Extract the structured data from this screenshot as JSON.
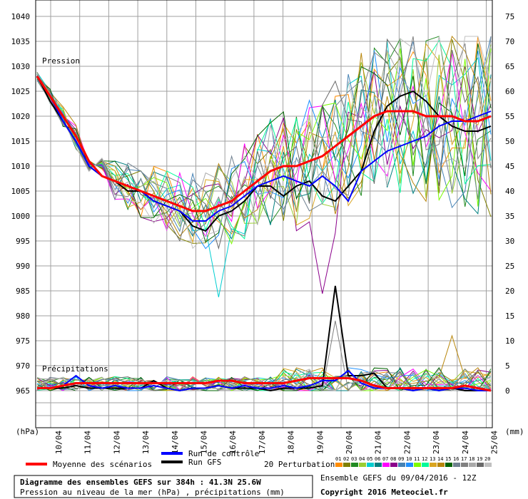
{
  "chart_data": {
    "type": "line",
    "left_axis": {
      "unit_label": "(hPa)",
      "ticks": [
        "1040",
        "1035",
        "1030",
        "1025",
        "1020",
        "1015",
        "1010",
        "1005",
        "1000",
        "995",
        "990",
        "985",
        "980",
        "975",
        "970",
        "965"
      ],
      "ylim": [
        960,
        1040
      ]
    },
    "right_axis": {
      "unit_label": "(mm)",
      "ticks": [
        "75",
        "70",
        "65",
        "60",
        "55",
        "50",
        "45",
        "40",
        "35",
        "30",
        "25",
        "20",
        "15",
        "10",
        "5",
        "0"
      ],
      "ylim": [
        -5,
        75
      ]
    },
    "x_ticks": [
      "10/04",
      "11/04",
      "12/04",
      "13/04",
      "14/04",
      "15/04",
      "16/04",
      "17/04",
      "18/04",
      "19/04",
      "20/04",
      "21/04",
      "22/04",
      "23/04",
      "24/04",
      "25/04"
    ],
    "section_labels": {
      "pressure": "Pression",
      "precip": "Précipitations"
    },
    "grid": true,
    "series": [
      {
        "name": "Moyenne des scénarios",
        "color": "#ff0000",
        "role": "mean",
        "pressure": [
          1028,
          1024,
          1020,
          1016,
          1011,
          1008,
          1007,
          1006,
          1005,
          1004,
          1003,
          1002,
          1001,
          1001,
          1002,
          1003,
          1005,
          1007,
          1009,
          1010,
          1010,
          1011,
          1012,
          1014,
          1016,
          1018,
          1020,
          1021,
          1021,
          1021,
          1020,
          1020,
          1020,
          1019,
          1019,
          1020
        ],
        "precip": [
          0.5,
          0.5,
          1,
          1.5,
          1.5,
          1.5,
          1.5,
          1.5,
          1.5,
          1.5,
          1.5,
          1.5,
          1.5,
          1.5,
          2,
          2,
          1.5,
          1.5,
          1.5,
          1.5,
          2,
          2.5,
          2.5,
          2.5,
          2.5,
          2,
          1,
          0.5,
          0.5,
          0.5,
          0.5,
          0.5,
          0.5,
          1,
          0.5,
          0
        ]
      },
      {
        "name": "Run de contrôle",
        "color": "#0000ff",
        "role": "control",
        "pressure": [
          1028,
          1024,
          1019,
          1015,
          1010,
          1008,
          1007,
          1006,
          1005,
          1003,
          1002,
          1001,
          999,
          999,
          1001,
          1002,
          1004,
          1006,
          1007,
          1008,
          1007,
          1006,
          1008,
          1006,
          1003,
          1009,
          1011,
          1013,
          1014,
          1015,
          1016,
          1018,
          1019,
          1019,
          1020,
          1021
        ],
        "precip": [
          0.5,
          0.5,
          1,
          3,
          1,
          0.5,
          1,
          0.5,
          0.5,
          1,
          0.5,
          0,
          0.5,
          0.5,
          1,
          0.5,
          1,
          0.5,
          0.5,
          1,
          0.5,
          1,
          2,
          2,
          4,
          1.5,
          0.5,
          0.5,
          0.5,
          0,
          0.5,
          0,
          0.5,
          0.5,
          0,
          0
        ]
      },
      {
        "name": "Run GFS",
        "color": "#000000",
        "role": "gfs",
        "pressure": [
          1028,
          1023,
          1019,
          1015,
          1010,
          1008,
          1007,
          1005,
          1005,
          1003,
          1002,
          1001,
          998,
          997,
          1000,
          1001,
          1003,
          1006,
          1006,
          1004,
          1006,
          1007,
          1004,
          1003,
          1006,
          1009,
          1017,
          1022,
          1024,
          1025,
          1023,
          1020,
          1018,
          1017,
          1017,
          1018
        ],
        "precip": [
          0.5,
          0.5,
          0.5,
          1,
          0.5,
          0.5,
          0.5,
          0.5,
          0.5,
          2,
          0.5,
          0,
          0.5,
          0.5,
          1,
          0.5,
          0.5,
          0.5,
          0,
          0.5,
          0.5,
          0.5,
          1,
          21,
          3,
          3,
          3.5,
          0.5,
          0.5,
          0,
          0.5,
          0,
          0.5,
          0,
          0,
          0
        ]
      }
    ],
    "legend": {
      "mean_label": "Moyenne des scénarios",
      "control_label": "Run de contrôle",
      "gfs_label": "Run GFS",
      "perturbations_label": "20 Perturbations",
      "perturbation_numbers": [
        "01",
        "02",
        "03",
        "04",
        "05",
        "06",
        "07",
        "08",
        "09",
        "10",
        "11",
        "12",
        "13",
        "14",
        "15",
        "16",
        "17",
        "18",
        "19",
        "20"
      ],
      "perturbation_colors": [
        "#ff8c00",
        "#808000",
        "#228b22",
        "#9acd32",
        "#00ced1",
        "#008080",
        "#ff00ff",
        "#8b008b",
        "#4682b4",
        "#1e90ff",
        "#7cfc00",
        "#00fa9a",
        "#daa520",
        "#b8860b",
        "#006400",
        "#708090",
        "#808080",
        "#a9a9a9",
        "#696969",
        "#c0c0c0"
      ]
    }
  },
  "footer": {
    "title": "Diagramme des ensembles GEFS sur 384h : 41.3N 25.6W",
    "subtitle": "Pression au niveau de la mer (hPa) , précipitations (mm)",
    "run_info": "Ensemble GEFS du 09/04/2016 - 12Z",
    "copyright": "Copyright 2016 Meteociel.fr"
  }
}
